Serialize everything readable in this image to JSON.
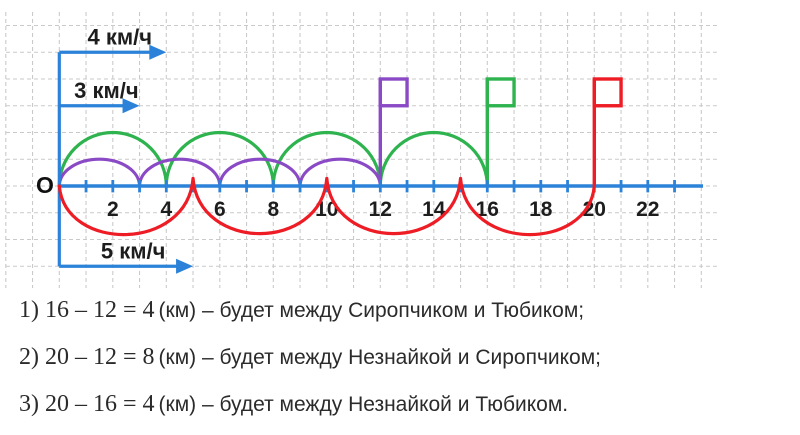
{
  "chart_data": {
    "type": "number-line-jumps",
    "axis": {
      "min": 0,
      "max": 23,
      "tick_step": 1,
      "labeled_ticks": [
        2,
        4,
        6,
        8,
        10,
        12,
        14,
        16,
        18,
        20,
        22
      ],
      "origin_label": "O",
      "color": "#2b82d8"
    },
    "grid": true,
    "grid_color": "#cacaca",
    "series": [
      {
        "speed_label": "4 км/ч",
        "speed_kmh": 4,
        "color": "#2eb34f",
        "side": "above",
        "arc_height_units": 2,
        "arcs": [
          [
            0,
            4
          ],
          [
            4,
            8
          ],
          [
            8,
            12
          ],
          [
            12,
            16
          ]
        ],
        "flag_at": 16,
        "arrow_row": "top"
      },
      {
        "speed_label": "3 км/ч",
        "speed_kmh": 3,
        "color": "#8b4ac5",
        "side": "above",
        "arc_height_units": 1,
        "arcs": [
          [
            0,
            3
          ],
          [
            3,
            6
          ],
          [
            6,
            9
          ],
          [
            9,
            12
          ]
        ],
        "flag_at": 12,
        "arrow_row": "middle"
      },
      {
        "speed_label": "5 км/ч",
        "speed_kmh": 5,
        "color": "#ee1c24",
        "side": "below",
        "arc_height_units": 1.85,
        "arcs": [
          [
            0,
            5
          ],
          [
            5,
            10
          ],
          [
            10,
            15
          ],
          [
            15,
            20
          ]
        ],
        "flag_at": 20,
        "arrow_row": "bottom"
      }
    ]
  },
  "solutions": [
    {
      "formula": "1) 16 – 12 = 4",
      "rest": "(км) – будет между Сиропчиком и Тюбиком;"
    },
    {
      "formula": "2) 20 – 12 = 8",
      "rest": "(км) – будет между Незнайкой и Сиропчиком;"
    },
    {
      "formula": "3) 20 – 16 = 4",
      "rest": "(км) – будет между Незнайкой и Тюбиком."
    }
  ]
}
